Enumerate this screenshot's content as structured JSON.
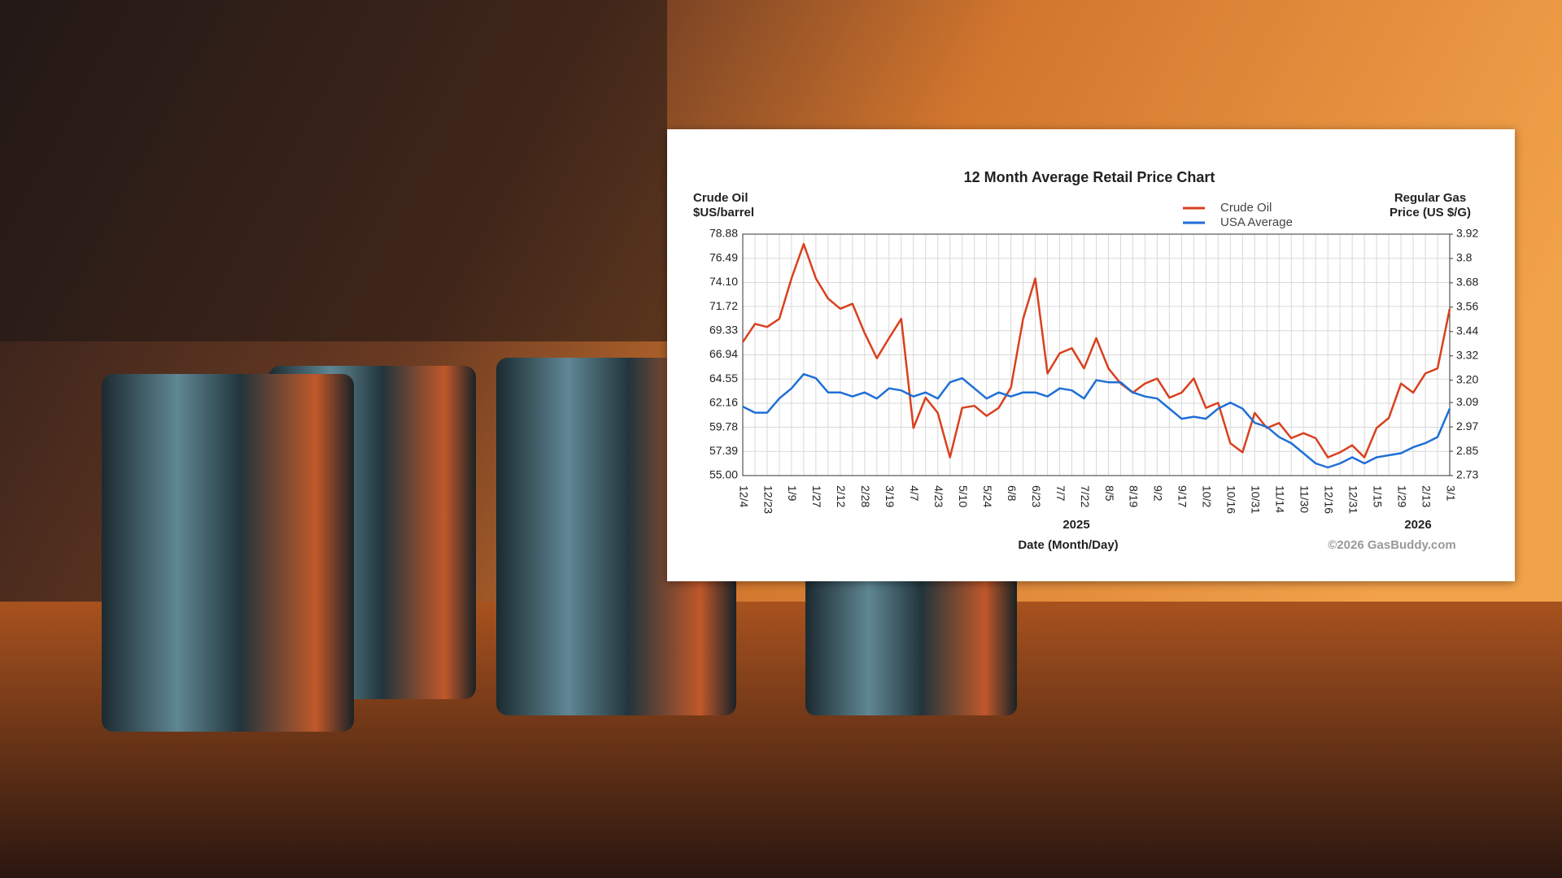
{
  "chart_data": {
    "type": "line",
    "title": "12 Month Average Retail Price Chart",
    "ylabel": [
      "Crude Oil",
      "$US/barrel"
    ],
    "y2label": [
      "Regular Gas",
      "Price (US $/G)"
    ],
    "xlabel": "Date (Month/Day)",
    "annotations": [
      "2025",
      "2026"
    ],
    "credit": "©2026 GasBuddy.com",
    "categories": [
      "12/4",
      null,
      "12/23",
      null,
      "1/9",
      null,
      "1/27",
      null,
      "2/12",
      null,
      "2/28",
      null,
      "3/19",
      null,
      "4/7",
      null,
      "4/23",
      null,
      "5/10",
      null,
      "5/24",
      null,
      "6/8",
      null,
      "6/23",
      null,
      "7/7",
      null,
      "7/22",
      null,
      "8/5",
      null,
      "8/19",
      null,
      "9/2",
      null,
      "9/17",
      null,
      "10/2",
      null,
      "10/16",
      null,
      "10/31",
      null,
      "11/14",
      null,
      "11/30",
      null,
      "12/16",
      null,
      "12/31",
      null,
      "1/15",
      null,
      "1/29",
      null,
      "2/13",
      null,
      "3/1"
    ],
    "series": [
      {
        "name": "Crude Oil",
        "color": "#d9401e",
        "values": [
          68.2,
          70.0,
          69.7,
          70.5,
          74.5,
          77.9,
          74.5,
          72.5,
          71.5,
          72.0,
          69.1,
          66.6,
          68.6,
          70.5,
          59.7,
          62.7,
          61.2,
          56.8,
          61.7,
          61.9,
          60.9,
          61.7,
          63.7,
          70.5,
          74.5,
          65.1,
          67.1,
          67.6,
          65.6,
          68.6,
          65.6,
          64.1,
          63.2,
          64.1,
          64.6,
          62.7,
          63.2,
          64.6,
          61.7,
          62.2,
          58.2,
          57.3,
          61.2,
          59.7,
          60.2,
          58.7,
          59.2,
          58.7,
          56.8,
          57.3,
          58.0,
          56.8,
          59.7,
          60.7,
          64.1,
          63.2,
          65.1,
          65.6,
          71.5
        ]
      },
      {
        "name": "USA Average",
        "color": "#1f6fd6",
        "axis": "y2",
        "values": [
          3.07,
          3.04,
          3.04,
          3.11,
          3.16,
          3.23,
          3.21,
          3.14,
          3.14,
          3.12,
          3.14,
          3.11,
          3.16,
          3.15,
          3.12,
          3.14,
          3.11,
          3.19,
          3.21,
          3.16,
          3.11,
          3.14,
          3.12,
          3.14,
          3.14,
          3.12,
          3.16,
          3.15,
          3.11,
          3.2,
          3.19,
          3.19,
          3.14,
          3.12,
          3.11,
          3.06,
          3.01,
          3.02,
          3.01,
          3.06,
          3.09,
          3.06,
          2.99,
          2.97,
          2.92,
          2.89,
          2.84,
          2.79,
          2.77,
          2.79,
          2.82,
          2.79,
          2.82,
          2.83,
          2.84,
          2.87,
          2.89,
          2.92,
          3.06
        ]
      }
    ],
    "ylim": [
      55,
      78.88
    ],
    "yticks": [
      {
        "value": 55,
        "label": "55.00"
      },
      57.39,
      59.78,
      62.16,
      64.55,
      66.94,
      69.33,
      71.72,
      {
        "value": 74.1,
        "label": "74.10"
      },
      76.49,
      78.88
    ],
    "y2lim": [
      2.73,
      3.92
    ],
    "y2ticks": [
      2.73,
      2.85,
      2.97,
      3.09,
      {
        "value": 3.2,
        "label": "3.20"
      },
      3.32,
      3.44,
      3.56,
      3.68,
      3.8,
      3.92
    ],
    "grid": true,
    "legend": "top-right"
  }
}
